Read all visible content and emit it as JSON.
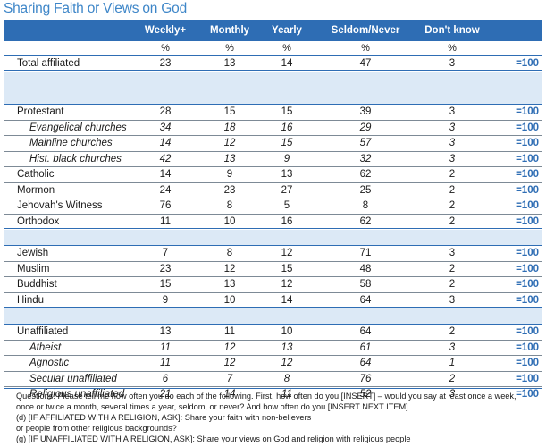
{
  "title": "Sharing Faith or Views on God",
  "columns": [
    "Weekly+",
    "Monthly",
    "Yearly",
    "Seldom/Never",
    "Don't know"
  ],
  "percent_row": [
    "%",
    "%",
    "%",
    "%",
    "%"
  ],
  "total_label": "=100",
  "groups": [
    {
      "rows": [
        {
          "label": "Total affiliated",
          "values": [
            "23",
            "13",
            "14",
            "47",
            "3"
          ],
          "sub": false
        }
      ]
    },
    {
      "rows": [
        {
          "label": "Protestant",
          "values": [
            "28",
            "15",
            "15",
            "39",
            "3"
          ],
          "sub": false
        },
        {
          "label": "Evangelical churches",
          "values": [
            "34",
            "18",
            "16",
            "29",
            "3"
          ],
          "sub": true
        },
        {
          "label": "Mainline churches",
          "values": [
            "14",
            "12",
            "15",
            "57",
            "3"
          ],
          "sub": true
        },
        {
          "label": "Hist. black churches",
          "values": [
            "42",
            "13",
            "9",
            "32",
            "3"
          ],
          "sub": true
        },
        {
          "label": "Catholic",
          "values": [
            "14",
            "9",
            "13",
            "62",
            "2"
          ],
          "sub": false
        },
        {
          "label": "Mormon",
          "values": [
            "24",
            "23",
            "27",
            "25",
            "2"
          ],
          "sub": false
        },
        {
          "label": "Jehovah's Witness",
          "values": [
            "76",
            "8",
            "5",
            "8",
            "2"
          ],
          "sub": false
        },
        {
          "label": "Orthodox",
          "values": [
            "11",
            "10",
            "16",
            "62",
            "2"
          ],
          "sub": false
        }
      ]
    },
    {
      "rows": [
        {
          "label": "Jewish",
          "values": [
            "7",
            "8",
            "12",
            "71",
            "3"
          ],
          "sub": false
        },
        {
          "label": "Muslim",
          "values": [
            "23",
            "12",
            "15",
            "48",
            "2"
          ],
          "sub": false
        },
        {
          "label": "Buddhist",
          "values": [
            "15",
            "13",
            "12",
            "58",
            "2"
          ],
          "sub": false
        },
        {
          "label": "Hindu",
          "values": [
            "9",
            "10",
            "14",
            "64",
            "3"
          ],
          "sub": false
        }
      ]
    },
    {
      "rows": [
        {
          "label": "Unaffiliated",
          "values": [
            "13",
            "11",
            "10",
            "64",
            "2"
          ],
          "sub": false
        },
        {
          "label": "Atheist",
          "values": [
            "11",
            "12",
            "13",
            "61",
            "3"
          ],
          "sub": true
        },
        {
          "label": "Agnostic",
          "values": [
            "11",
            "12",
            "12",
            "64",
            "1"
          ],
          "sub": true
        },
        {
          "label": "Secular unaffiliated",
          "values": [
            "6",
            "7",
            "8",
            "76",
            "2"
          ],
          "sub": true
        },
        {
          "label": "Religious unaffiliated",
          "values": [
            "21",
            "14",
            "11",
            "52",
            "3"
          ],
          "sub": true
        }
      ]
    }
  ],
  "notes": [
    "Questions: Please tell me how often you do each of the following.  First, how often do you [INSERT] – would you say at least once a week,",
    "once or twice a month, several times a year, seldom, or never?  And how often do you [INSERT NEXT ITEM]",
    "(d) [IF AFFILIATED WITH A RELIGION, ASK]: Share your faith with non-believers",
    "or people from other religious backgrounds?",
    "(g) [IF UNAFFILIATED WITH A RELIGION, ASK]: Share your views on God and religion with religious people"
  ]
}
